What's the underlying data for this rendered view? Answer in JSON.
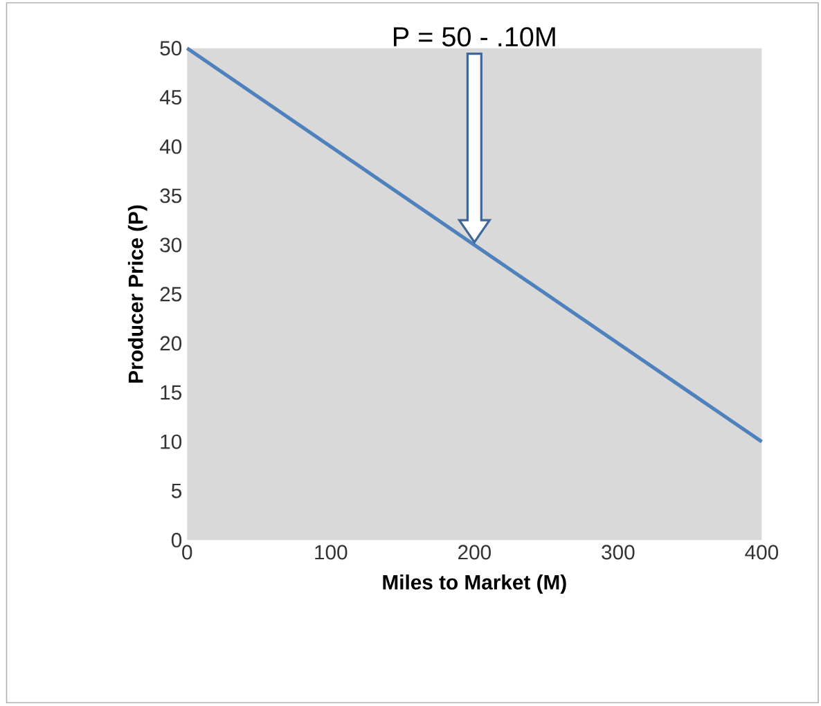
{
  "chart_data": {
    "type": "line",
    "xlabel": "Miles to Market (M)",
    "ylabel": "Producer Price (P)",
    "x": [
      0,
      400
    ],
    "series": [
      {
        "color": "#4f81bd",
        "values": [
          50,
          10
        ]
      }
    ],
    "xlim": [
      0,
      400
    ],
    "ylim": [
      0,
      50
    ],
    "xticks": [
      0,
      100,
      200,
      300,
      400
    ],
    "yticks": [
      0,
      5,
      10,
      15,
      20,
      25,
      30,
      35,
      40,
      45,
      50
    ],
    "grid": false,
    "marker": "none",
    "line_style": "solid",
    "annotations": [
      "P = 50 - .10M"
    ]
  }
}
